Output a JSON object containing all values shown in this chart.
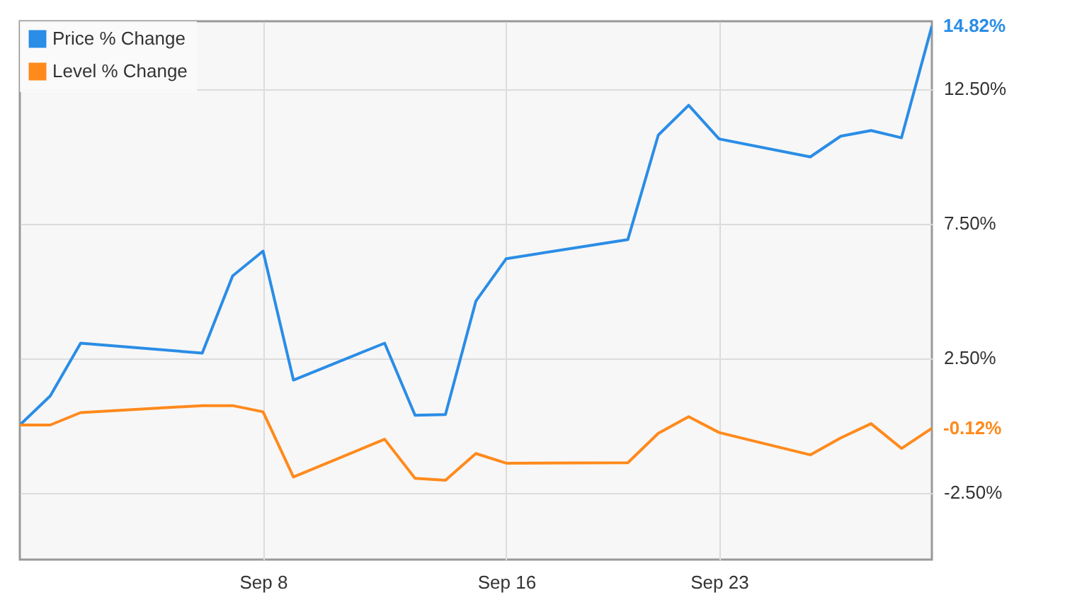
{
  "chart_data": {
    "type": "line",
    "x": [
      "--08-31",
      "--09-01",
      "--09-02",
      "--09-06",
      "--09-07",
      "--09-08",
      "--09-09",
      "--09-12",
      "--09-13",
      "--09-14",
      "--09-15",
      "--09-16",
      "--09-20",
      "--09-21",
      "--09-22",
      "--09-23",
      "--09-26",
      "--09-27",
      "--09-28",
      "--09-29",
      "--09-30"
    ],
    "series": [
      {
        "name": "Price % Change",
        "color": "#2a8de6",
        "values": [
          0,
          1.08,
          3.04,
          2.67,
          5.54,
          6.46,
          1.67,
          3.04,
          0.36,
          0.39,
          4.6,
          6.18,
          6.89,
          10.77,
          11.88,
          10.63,
          9.96,
          10.73,
          10.94,
          10.67,
          14.82
        ],
        "value_labels": [
          null,
          null,
          null,
          null,
          null,
          null,
          null,
          null,
          null,
          null,
          null,
          null,
          null,
          null,
          null,
          null,
          null,
          null,
          null,
          null,
          "14.82%"
        ]
      },
      {
        "name": "Level % Change",
        "color": "#ff8a1c",
        "values": [
          0,
          0,
          0.46,
          0.72,
          0.72,
          0.49,
          -1.93,
          -0.53,
          -1.98,
          -2.05,
          -1.06,
          -1.42,
          -1.4,
          -0.31,
          0.31,
          -0.28,
          -1.11,
          -0.48,
          0.05,
          -0.87,
          -0.12
        ],
        "value_labels": [
          null,
          null,
          null,
          null,
          null,
          null,
          null,
          null,
          null,
          null,
          null,
          null,
          null,
          null,
          null,
          null,
          null,
          null,
          null,
          null,
          "-0.12%"
        ]
      }
    ],
    "xlim": [
      "--08-31",
      "--09-30"
    ],
    "xticks": [
      {
        "value": "--09-08",
        "label": "Sep 8"
      },
      {
        "value": "--09-16",
        "label": "Sep 16"
      },
      {
        "value": "--09-23",
        "label": "Sep 23"
      }
    ],
    "ylim": [
      -5,
      15
    ],
    "yticks": [
      {
        "value": -2.5,
        "label": "-2.50%"
      },
      {
        "value": 2.5,
        "label": "2.50%"
      },
      {
        "value": 7.5,
        "label": "7.50%"
      },
      {
        "value": 12.5,
        "label": "12.50%"
      }
    ],
    "grid": true,
    "legend": "top left"
  }
}
